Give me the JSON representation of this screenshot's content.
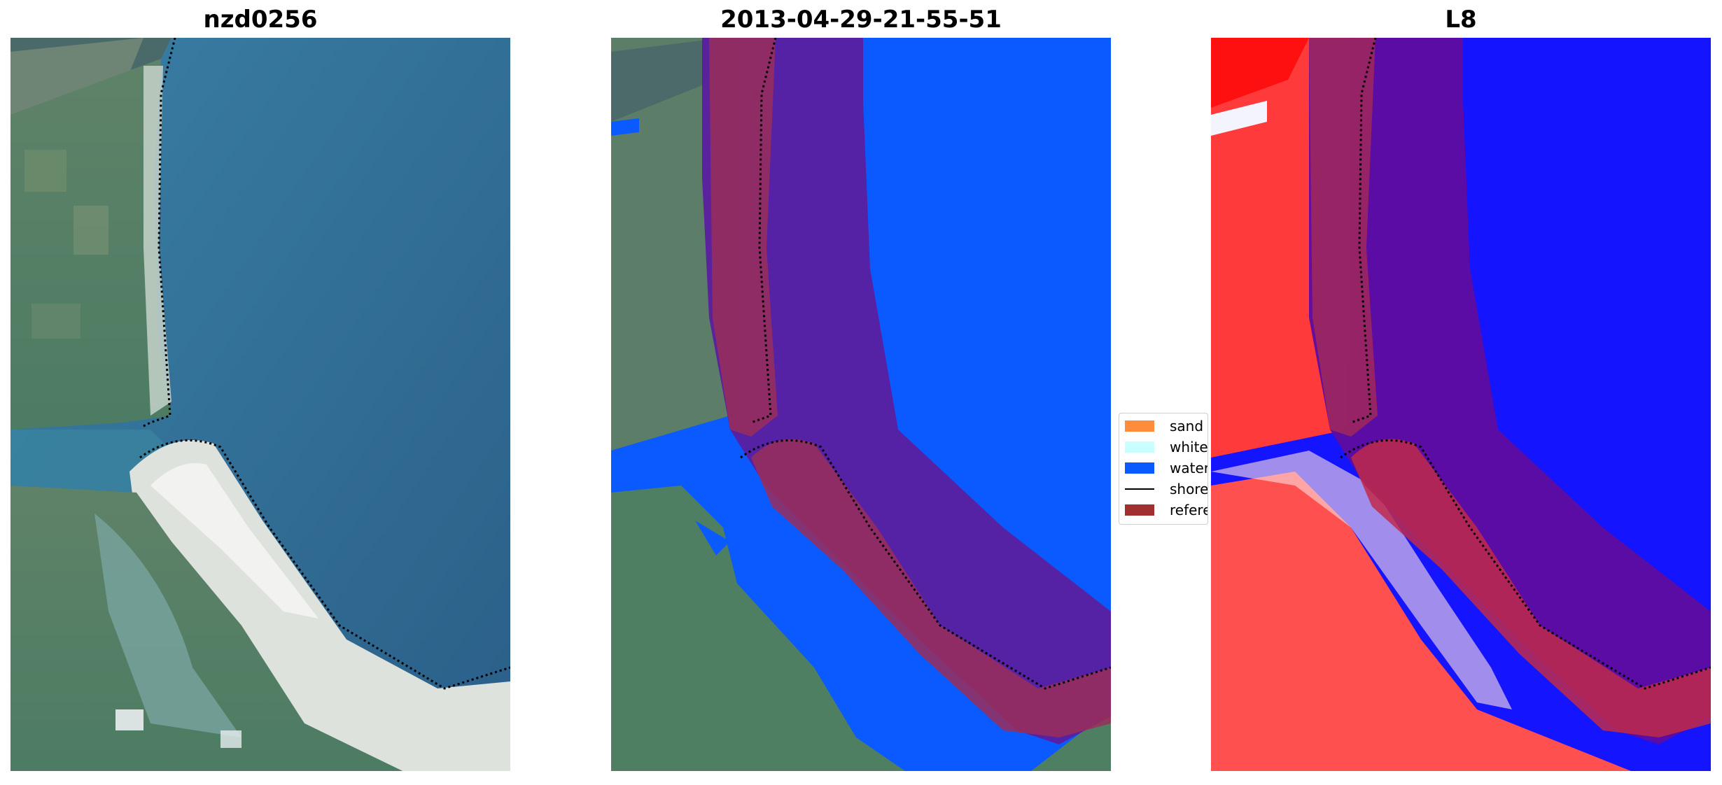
{
  "panels": [
    {
      "title": "nzd0256"
    },
    {
      "title": "2013-04-29-21-55-51"
    },
    {
      "title": "L8"
    }
  ],
  "legend": {
    "items": [
      {
        "label": "sand",
        "color": "#ff8c3a",
        "kind": "patch"
      },
      {
        "label": "whitew",
        "color": "#c8ffff",
        "kind": "patch"
      },
      {
        "label": "water",
        "color": "#0a5aff",
        "kind": "patch"
      },
      {
        "label": "shorel",
        "color": "#000000",
        "kind": "line"
      },
      {
        "label": "referen",
        "color": "#a03030",
        "kind": "patch"
      }
    ]
  },
  "colors": {
    "ocean": "#2d6a93",
    "land": "#4f7f64",
    "classified_water": "#0a5aff",
    "buffer_overlay": "#5a1fa0",
    "reference_shoreline_zone": "#9a2e5a",
    "l8_land": "#ff3a3a",
    "l8_water": "#1414ff"
  }
}
